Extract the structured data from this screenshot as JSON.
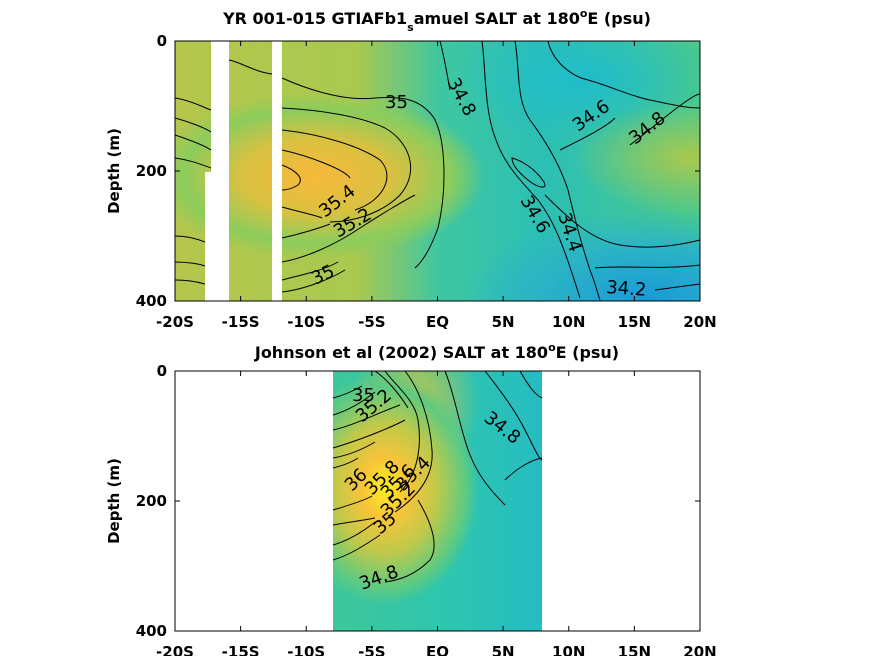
{
  "chart_data": [
    {
      "type": "heatmap",
      "title_prefix": "YR 001-015 GTIAFb1",
      "title_subscript": "s",
      "title_mid": "amuel SALT at 180",
      "title_superscript": "o",
      "title_suffix": "E (psu)",
      "ylabel": "Depth (m)",
      "xticks": [
        "-20S",
        "-15S",
        "-10S",
        "-5S",
        "EQ",
        "5N",
        "10N",
        "15N",
        "20N"
      ],
      "yticks": [
        "0",
        "200",
        "400"
      ],
      "xlim": [
        -20,
        20
      ],
      "ylim": [
        0,
        400
      ],
      "y_reversed": true,
      "missing_x_ranges": [
        [
          -17.3,
          -15.4
        ],
        [
          -12.2,
          -11.6
        ]
      ],
      "contour_labels": [
        "35",
        "34.8",
        "34.6",
        "34.8",
        "35.4",
        "35.2",
        "34.6",
        "34.4",
        "35",
        "34.2"
      ],
      "colors": {
        "high": "#f5b33c",
        "mid": "#3ec98a",
        "low": "#1a9bd7"
      }
    },
    {
      "type": "heatmap",
      "title_prefix": "Johnson et al (2002) SALT at 180",
      "title_superscript": "o",
      "title_suffix": "E (psu)",
      "ylabel": "Depth (m)",
      "xticks": [
        "-20S",
        "-15S",
        "-10S",
        "-5S",
        "EQ",
        "5N",
        "10N",
        "15N",
        "20N"
      ],
      "yticks": [
        "0",
        "200",
        "400"
      ],
      "xlim": [
        -20,
        20
      ],
      "ylim": [
        0,
        400
      ],
      "y_reversed": true,
      "data_x_range": [
        -8,
        8
      ],
      "contour_labels": [
        "35",
        "35.2",
        "34.8",
        "36",
        "35.8",
        "35.6",
        "35.4",
        "35.2",
        "35",
        "34.8"
      ],
      "colors": {
        "high": "#f8f21c",
        "mid": "#44c98a",
        "low": "#22b4c8"
      }
    }
  ]
}
